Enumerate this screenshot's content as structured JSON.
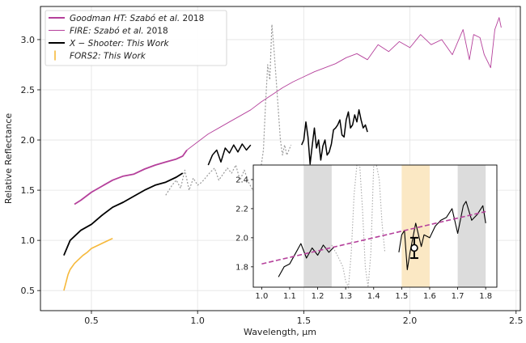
{
  "chart_data": {
    "type": "line",
    "xlabel": "Wavelength, μm",
    "ylabel": "Relative Reflectance",
    "xlim": [
      0.26,
      2.52
    ],
    "ylim": [
      0.3,
      3.33
    ],
    "grid": true,
    "legend_position": "top-left",
    "xticks": [
      "0.5",
      "1.0",
      "1.5",
      "2.0",
      "2.5"
    ],
    "yticks": [
      "0.5",
      "1.0",
      "1.5",
      "2.0",
      "2.5",
      "3.0"
    ],
    "legend": [
      {
        "label_main": "Goodman HT",
        "label_rest": ": Szabó et al.",
        "label_year": "2018",
        "style": "thick-line",
        "color": "#b5409b"
      },
      {
        "label_main": "FIRE",
        "label_rest": ": Szabó et al.",
        "label_year": "2018",
        "style": "thin-line",
        "color": "#b5409b"
      },
      {
        "label_main": "X − Shooter",
        "label_rest": ": This Work",
        "label_year": "",
        "style": "thick-line",
        "color": "#000000"
      },
      {
        "label_main": "FORS2",
        "label_rest": ": This Work",
        "label_year": "",
        "style": "errorbar",
        "color": "#f6b93b"
      }
    ],
    "series": [
      {
        "name": "Goodman HT",
        "color": "#b5409b",
        "width": 1.8,
        "dash": "",
        "x": [
          0.42,
          0.45,
          0.5,
          0.55,
          0.6,
          0.65,
          0.7,
          0.75,
          0.8,
          0.85,
          0.9,
          0.93,
          0.95
        ],
        "y": [
          1.36,
          1.4,
          1.48,
          1.54,
          1.6,
          1.64,
          1.66,
          1.71,
          1.75,
          1.78,
          1.81,
          1.84,
          1.9
        ]
      },
      {
        "name": "FIRE",
        "color": "#b5409b",
        "width": 0.9,
        "dash": "",
        "x": [
          0.95,
          1.0,
          1.05,
          1.1,
          1.15,
          1.2,
          1.25,
          1.3,
          1.35,
          1.4,
          1.45,
          1.5,
          1.55,
          1.6,
          1.65,
          1.7,
          1.75,
          1.8,
          1.85,
          1.9,
          1.95,
          2.0,
          2.05,
          2.1,
          2.15,
          2.2,
          2.25,
          2.28,
          2.3,
          2.33,
          2.35,
          2.38,
          2.4,
          2.42,
          2.43
        ],
        "y": [
          1.9,
          1.98,
          2.06,
          2.12,
          2.18,
          2.24,
          2.3,
          2.38,
          2.45,
          2.52,
          2.58,
          2.63,
          2.68,
          2.72,
          2.76,
          2.82,
          2.86,
          2.8,
          2.95,
          2.88,
          2.98,
          2.92,
          3.05,
          2.95,
          3.0,
          2.85,
          3.1,
          2.8,
          3.05,
          3.02,
          2.85,
          2.72,
          3.1,
          3.22,
          3.12
        ]
      },
      {
        "name": "X-Shooter",
        "color": "#000000",
        "width": 1.8,
        "dash": "",
        "x": [
          0.37,
          0.4,
          0.45,
          0.5,
          0.55,
          0.6,
          0.65,
          0.7,
          0.75,
          0.8,
          0.85,
          0.9,
          0.93
        ],
        "y": [
          0.85,
          1.0,
          1.1,
          1.16,
          1.25,
          1.33,
          1.38,
          1.44,
          1.5,
          1.55,
          1.58,
          1.63,
          1.67
        ]
      },
      {
        "name": "X-Shooter NIR 1",
        "color": "#000000",
        "width": 1.5,
        "dash": "",
        "x": [
          1.05,
          1.07,
          1.09,
          1.11,
          1.13,
          1.15,
          1.17,
          1.19,
          1.21,
          1.23,
          1.25
        ],
        "y": [
          1.75,
          1.85,
          1.9,
          1.78,
          1.92,
          1.87,
          1.95,
          1.88,
          1.96,
          1.9,
          1.95
        ]
      },
      {
        "name": "X-Shooter NIR 2",
        "color": "#000000",
        "width": 1.5,
        "dash": "",
        "x": [
          1.49,
          1.5,
          1.51,
          1.52,
          1.53,
          1.54,
          1.55,
          1.56,
          1.57,
          1.58,
          1.59,
          1.6,
          1.61,
          1.62,
          1.63,
          1.64,
          1.65,
          1.66,
          1.67,
          1.68,
          1.69,
          1.7,
          1.71,
          1.72,
          1.73,
          1.74,
          1.75,
          1.76,
          1.77,
          1.78,
          1.79,
          1.8
        ],
        "y": [
          1.95,
          2.0,
          2.18,
          2.03,
          1.76,
          1.95,
          2.12,
          1.92,
          2.0,
          1.8,
          1.94,
          2.0,
          1.85,
          1.88,
          1.96,
          2.1,
          2.12,
          2.15,
          2.2,
          2.05,
          2.03,
          2.2,
          2.28,
          2.12,
          2.15,
          2.25,
          2.18,
          2.3,
          2.2,
          2.12,
          2.15,
          2.08
        ]
      },
      {
        "name": "X-Shooter gap (dotted)",
        "color": "#999999",
        "width": 1.2,
        "dash": "2,2",
        "x": [
          0.85,
          0.88,
          0.9,
          0.92,
          0.94,
          0.96,
          0.98,
          1.0,
          1.02,
          1.04,
          1.06,
          1.08,
          1.1,
          1.12,
          1.14,
          1.16,
          1.18,
          1.2,
          1.22,
          1.24,
          1.26,
          1.28,
          1.3,
          1.31,
          1.32,
          1.33,
          1.34,
          1.35,
          1.36,
          1.37,
          1.38,
          1.39,
          1.4,
          1.41,
          1.42,
          1.43,
          1.44
        ],
        "y": [
          1.45,
          1.55,
          1.6,
          1.52,
          1.7,
          1.5,
          1.62,
          1.55,
          1.58,
          1.63,
          1.68,
          1.72,
          1.6,
          1.66,
          1.72,
          1.67,
          1.75,
          1.6,
          1.7,
          1.58,
          1.5,
          1.6,
          1.75,
          1.9,
          2.35,
          2.75,
          2.6,
          3.15,
          2.9,
          2.6,
          2.3,
          2.0,
          1.85,
          1.95,
          1.85,
          1.9,
          1.95
        ]
      },
      {
        "name": "FORS2",
        "color": "#f6b93b",
        "width": 1.6,
        "dash": "",
        "x": [
          0.37,
          0.38,
          0.39,
          0.4,
          0.42,
          0.44,
          0.46,
          0.48,
          0.5,
          0.52,
          0.54,
          0.56,
          0.58,
          0.6
        ],
        "y": [
          0.5,
          0.58,
          0.66,
          0.71,
          0.77,
          0.81,
          0.85,
          0.88,
          0.92,
          0.94,
          0.96,
          0.98,
          1.0,
          1.02
        ]
      }
    ],
    "inset": {
      "xlim": [
        0.97,
        1.84
      ],
      "ylim": [
        1.66,
        2.5
      ],
      "xticks": [
        "1.0",
        "1.1",
        "1.2",
        "1.3",
        "1.4",
        "1.5",
        "1.6",
        "1.7",
        "1.8"
      ],
      "yticks": [
        "1.8",
        "2.0",
        "2.2",
        "2.4"
      ],
      "gray_bands": [
        [
          1.15,
          1.25
        ],
        [
          1.7,
          1.8
        ]
      ],
      "orange_band": [
        1.5,
        1.6
      ],
      "fit_line": {
        "x": [
          1.0,
          1.8
        ],
        "y": [
          1.82,
          2.18
        ]
      },
      "spectrum_1": {
        "x": [
          1.06,
          1.08,
          1.1,
          1.12,
          1.14,
          1.16,
          1.18,
          1.2,
          1.22,
          1.24,
          1.26
        ],
        "y": [
          1.73,
          1.8,
          1.82,
          1.89,
          1.96,
          1.86,
          1.93,
          1.88,
          1.95,
          1.9,
          1.94
        ]
      },
      "spectrum_2": {
        "x": [
          1.49,
          1.5,
          1.51,
          1.52,
          1.53,
          1.55,
          1.57,
          1.58,
          1.6,
          1.62,
          1.64,
          1.66,
          1.68,
          1.7,
          1.72,
          1.73,
          1.75,
          1.77,
          1.79,
          1.8
        ],
        "y": [
          1.9,
          2.02,
          2.05,
          1.78,
          1.9,
          2.1,
          1.94,
          2.02,
          2.0,
          2.08,
          2.12,
          2.14,
          2.2,
          2.03,
          2.22,
          2.25,
          2.12,
          2.16,
          2.22,
          2.1
        ]
      },
      "dotted": {
        "x": [
          1.25,
          1.27,
          1.29,
          1.3,
          1.31,
          1.32,
          1.33,
          1.34,
          1.35,
          1.36,
          1.37,
          1.38,
          1.39,
          1.4,
          1.41,
          1.42,
          1.43,
          1.44
        ],
        "y": [
          1.95,
          1.88,
          1.8,
          1.7,
          1.66,
          1.9,
          2.3,
          2.5,
          2.5,
          2.2,
          1.8,
          1.66,
          1.9,
          2.5,
          2.5,
          2.4,
          2.1,
          1.9
        ]
      },
      "point": {
        "x": 1.545,
        "y": 1.93,
        "err": 0.07
      }
    }
  }
}
